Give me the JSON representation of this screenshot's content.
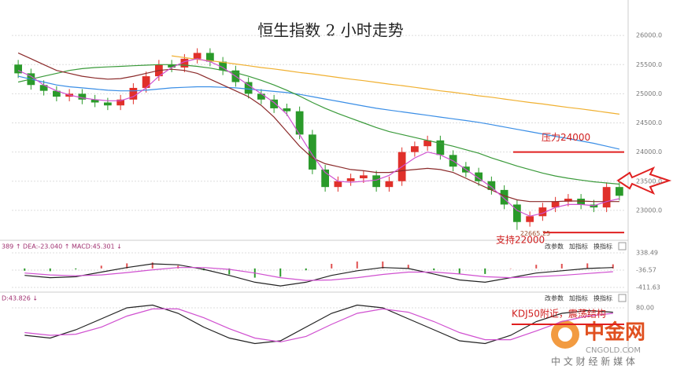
{
  "chart_data": [
    {
      "type": "candlestick",
      "title": "恒生指数 2 小时走势",
      "categories": [
        null,
        null,
        null,
        null,
        null,
        null,
        null,
        null,
        null,
        null,
        null,
        null,
        null,
        null,
        null,
        null,
        null,
        null,
        null,
        null,
        null,
        null,
        null,
        null,
        null,
        null,
        null,
        null,
        null,
        null,
        null,
        null,
        null,
        null,
        null,
        null,
        null,
        null,
        null,
        null,
        null,
        null,
        null,
        null,
        null,
        null,
        null,
        null
      ],
      "open": [
        25500,
        25350,
        25150,
        25050,
        24950,
        25000,
        24900,
        24850,
        24800,
        24900,
        25100,
        25300,
        25500,
        25450,
        25600,
        25700,
        25550,
        25400,
        25200,
        25000,
        24900,
        24750,
        24700,
        24300,
        23700,
        23400,
        23500,
        23550,
        23600,
        23400,
        23500,
        24000,
        24100,
        24200,
        23950,
        23750,
        23650,
        23500,
        23350,
        23100,
        22800,
        22900,
        23050,
        23150,
        23200,
        23100,
        23050,
        23400
      ],
      "close": [
        25350,
        25150,
        25050,
        24950,
        25000,
        24900,
        24850,
        24800,
        24900,
        25100,
        25300,
        25500,
        25450,
        25600,
        25700,
        25550,
        25400,
        25200,
        25000,
        24900,
        24750,
        24700,
        24300,
        23700,
        23400,
        23500,
        23550,
        23600,
        23400,
        23500,
        24000,
        24100,
        24200,
        23950,
        23750,
        23650,
        23500,
        23350,
        23100,
        22800,
        22900,
        23050,
        23150,
        23200,
        23100,
        23050,
        23400,
        23250
      ],
      "high": [
        25580,
        25430,
        25230,
        25130,
        25080,
        25080,
        24980,
        24930,
        24980,
        25180,
        25380,
        25580,
        25580,
        25680,
        25780,
        25780,
        25630,
        25480,
        25280,
        25080,
        24980,
        24830,
        24780,
        24380,
        23780,
        23580,
        23630,
        23680,
        23680,
        23580,
        24080,
        24180,
        24280,
        24280,
        24030,
        23830,
        23730,
        23580,
        23430,
        23180,
        22980,
        23130,
        23230,
        23280,
        23280,
        23180,
        23480,
        23480
      ],
      "low": [
        25270,
        25070,
        24970,
        24870,
        24870,
        24820,
        24770,
        24720,
        24720,
        24820,
        25020,
        25220,
        25370,
        25370,
        25520,
        25470,
        25320,
        25120,
        24920,
        24820,
        24670,
        24620,
        24220,
        23620,
        23320,
        23320,
        23420,
        23470,
        23320,
        23320,
        23420,
        23920,
        24020,
        23870,
        23670,
        23570,
        23420,
        23270,
        23020,
        22665.25,
        22720,
        22820,
        22970,
        23070,
        23020,
        22970,
        22970,
        23170
      ],
      "up_color": "#e0302a",
      "down_color": "#2a9a2a",
      "series": [
        {
          "color": "#f0b030",
          "values": [
            null,
            null,
            null,
            null,
            null,
            null,
            null,
            null,
            null,
            null,
            null,
            null,
            25650,
            25620,
            25590,
            25565,
            25540,
            25510,
            25480,
            25450,
            25425,
            25395,
            25365,
            25340,
            25310,
            25280,
            25250,
            25225,
            25195,
            25165,
            25140,
            25110,
            25080,
            25050,
            25025,
            24995,
            24965,
            24940,
            24910,
            24880,
            24850,
            24825,
            24795,
            24765,
            24740,
            24710,
            24680,
            24650
          ]
        },
        {
          "color": "#3a8ee6",
          "values": [
            25300,
            25250,
            25200,
            25150,
            25120,
            25100,
            25080,
            25060,
            25050,
            25050,
            25060,
            25080,
            25100,
            25110,
            25120,
            25120,
            25110,
            25100,
            25080,
            25060,
            25040,
            25020,
            24990,
            24950,
            24910,
            24870,
            24830,
            24790,
            24750,
            24720,
            24690,
            24660,
            24630,
            24600,
            24570,
            24540,
            24510,
            24470,
            24430,
            24390,
            24350,
            24310,
            24270,
            24230,
            24190,
            24150,
            24100,
            24050
          ]
        },
        {
          "color": "#3a9a3a",
          "values": [
            25200,
            25250,
            25300,
            25350,
            25400,
            25430,
            25450,
            25460,
            25470,
            25480,
            25490,
            25500,
            25500,
            25490,
            25470,
            25440,
            25400,
            25360,
            25300,
            25230,
            25150,
            25060,
            24960,
            24850,
            24750,
            24660,
            24580,
            24500,
            24420,
            24350,
            24300,
            24250,
            24200,
            24150,
            24100,
            24040,
            23980,
            23900,
            23830,
            23760,
            23700,
            23640,
            23590,
            23550,
            23520,
            23490,
            23470,
            23450
          ]
        },
        {
          "color": "#8b2a2a",
          "values": [
            25700,
            25600,
            25500,
            25400,
            25350,
            25300,
            25270,
            25250,
            25260,
            25300,
            25350,
            25400,
            25420,
            25400,
            25350,
            25250,
            25150,
            25050,
            24950,
            24800,
            24600,
            24350,
            24100,
            23900,
            23800,
            23750,
            23700,
            23680,
            23650,
            23650,
            23680,
            23700,
            23720,
            23700,
            23650,
            23550,
            23450,
            23350,
            23250,
            23180,
            23150,
            23150,
            23150,
            23160,
            23160,
            23150,
            23150,
            23150
          ]
        },
        {
          "color": "#d050d0",
          "values": [
            25400,
            25300,
            25150,
            25050,
            24980,
            24930,
            24900,
            24880,
            24880,
            24950,
            25100,
            25300,
            25450,
            25550,
            25600,
            25550,
            25450,
            25300,
            25150,
            25000,
            24850,
            24650,
            24300,
            23950,
            23650,
            23500,
            23480,
            23500,
            23520,
            23600,
            23750,
            23900,
            24000,
            23950,
            23850,
            23700,
            23550,
            23400,
            23200,
            23000,
            22900,
            22950,
            23050,
            23100,
            23100,
            23080,
            23150,
            23200
          ]
        }
      ],
      "ylim": [
        22500,
        26500
      ],
      "yticks": [
        {
          "value": 23000,
          "label": "23000.0"
        },
        {
          "value": 23500,
          "label": "23500.0"
        },
        {
          "value": 24000,
          "label": "24000.0"
        },
        {
          "value": 24500,
          "label": "24500.0"
        },
        {
          "value": 25000,
          "label": "25000.0"
        },
        {
          "value": 25500,
          "label": "25500.0"
        },
        {
          "value": 26000,
          "label": "26000.0"
        }
      ],
      "grid": true,
      "annotations": [
        {
          "text": "压力24000",
          "y": 24000
        },
        {
          "text": "支持22000",
          "y": 22620
        }
      ]
    },
    {
      "type": "line",
      "header": "389 ↑ DEA:-23.040 ↑ MACD:45.301 ↓",
      "categories": [
        null,
        null,
        null,
        null,
        null,
        null,
        null,
        null,
        null,
        null,
        null,
        null,
        null,
        null,
        null,
        null,
        null,
        null,
        null,
        null,
        null,
        null,
        null,
        null
      ],
      "series": [
        {
          "type": "bar",
          "color": "#e05050",
          "neg_color": "#2a9a2a",
          "values": [
            -50,
            -60,
            -20,
            60,
            110,
            130,
            60,
            -40,
            -130,
            -200,
            -180,
            -40,
            100,
            150,
            150,
            80,
            -40,
            -130,
            -120,
            0,
            80,
            100,
            110,
            90
          ]
        },
        {
          "color": "#222222",
          "values": [
            -150,
            -200,
            -180,
            -80,
            20,
            100,
            80,
            -20,
            -150,
            -300,
            -380,
            -300,
            -150,
            -50,
            20,
            0,
            -120,
            -250,
            -300,
            -200,
            -100,
            -50,
            0,
            20
          ]
        },
        {
          "color": "#d050d0",
          "values": [
            -100,
            -140,
            -160,
            -140,
            -90,
            -30,
            20,
            20,
            -20,
            -100,
            -200,
            -260,
            -250,
            -200,
            -130,
            -80,
            -80,
            -120,
            -180,
            -200,
            -180,
            -150,
            -110,
            -70
          ]
        }
      ],
      "ylim": [
        -514,
        509
      ],
      "yticks": [
        338.49,
        -36.57,
        -411.63
      ],
      "grid": true
    },
    {
      "type": "line",
      "header": "D:43.826 ↓",
      "categories": [
        null,
        null,
        null,
        null,
        null,
        null,
        null,
        null,
        null,
        null,
        null,
        null,
        null,
        null,
        null,
        null,
        null,
        null,
        null,
        null,
        null,
        null,
        null,
        null
      ],
      "series": [
        {
          "color": "#222222",
          "values": [
            30,
            25,
            40,
            60,
            80,
            85,
            70,
            45,
            25,
            15,
            20,
            45,
            70,
            85,
            80,
            60,
            40,
            20,
            15,
            30,
            55,
            70,
            75,
            72
          ]
        },
        {
          "color": "#d050d0",
          "values": [
            35,
            30,
            32,
            45,
            65,
            78,
            78,
            62,
            42,
            25,
            18,
            28,
            50,
            70,
            78,
            72,
            55,
            35,
            22,
            22,
            38,
            55,
            65,
            70
          ]
        }
      ],
      "ylim": [
        0,
        100
      ],
      "yticks": [
        {
          "value": 80,
          "label": "80.00"
        }
      ],
      "grid": true,
      "annotations": [
        {
          "text": "KDJ50附近，震荡结构",
          "y": 50
        }
      ]
    }
  ],
  "toolbar": [
    "改参数",
    "加指标",
    "换指标"
  ],
  "watermark": {
    "name": "中金网",
    "site": "CNGOLD.COM",
    "slogan": "中 文 财 经 新 媒 体"
  }
}
